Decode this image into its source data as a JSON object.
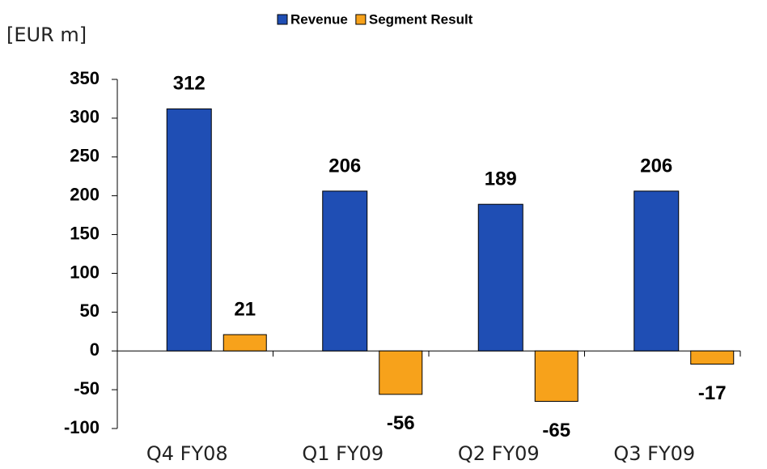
{
  "chart_data": {
    "type": "bar",
    "ylabel": "[EUR m]",
    "categories": [
      "Q4 FY08",
      "Q1 FY09",
      "Q2 FY09",
      "Q3 FY09"
    ],
    "series": [
      {
        "name": "Revenue",
        "color": "#1f4eb4",
        "values": [
          312,
          206,
          189,
          206
        ]
      },
      {
        "name": "Segment Result",
        "color": "#f7a21b",
        "values": [
          21,
          -56,
          -65,
          -17
        ]
      }
    ],
    "ylim": [
      -100,
      350
    ],
    "yticks": [
      -100,
      -50,
      0,
      50,
      100,
      150,
      200,
      250,
      300,
      350
    ],
    "legend": "top"
  }
}
